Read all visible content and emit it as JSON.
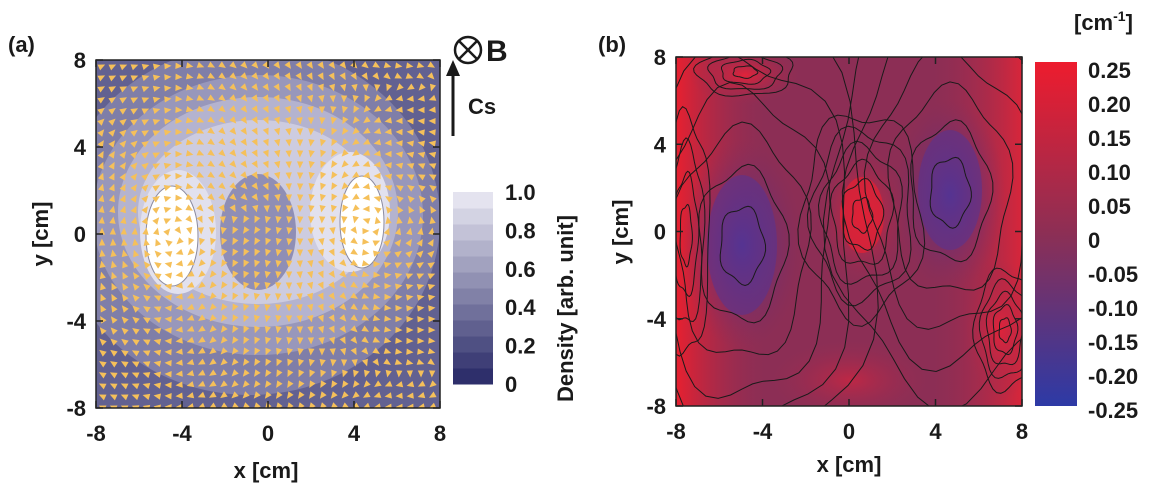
{
  "panels": {
    "a": {
      "label": "(a)",
      "field_symbol": "⊗",
      "field_label": "B",
      "arrow_label": "Cs",
      "colorbar_label": "Density [arb. unit]",
      "colorbar_ticks": [
        "0",
        "0.2",
        "0.4",
        "0.6",
        "0.8",
        "1.0"
      ],
      "colors": {
        "density_low": "#2e2f6b",
        "density_high": "#ffffff",
        "vector": "#f5c05a"
      }
    },
    "b": {
      "label": "(b)",
      "colorbar_unit": "[cm",
      "colorbar_unit_exp": "-1",
      "colorbar_unit_close": "]",
      "colorbar_ticks": [
        "0.25",
        "0.20",
        "0.15",
        "0.10",
        "0.05",
        "0",
        "-0.05",
        "-0.10",
        "-0.15",
        "-0.20",
        "-0.25"
      ],
      "colors": {
        "low": "#2d3aa6",
        "mid": "#8c2f55",
        "high": "#ed1c2e"
      }
    }
  },
  "chart_data": [
    {
      "type": "heatmap",
      "panel": "(a)",
      "xlabel": "x [cm]",
      "ylabel": "y [cm]",
      "xlim": [
        -8,
        8
      ],
      "ylim": [
        -8,
        8
      ],
      "xticks": [
        "-8",
        "-4",
        "0",
        "4",
        "8"
      ],
      "yticks": [
        "8",
        "4",
        "0",
        "-4",
        "-8"
      ],
      "colorbar_range": [
        0,
        1.0
      ],
      "overlay": "velocity vector field",
      "features": [
        {
          "feature": "density peak",
          "x": -4,
          "y": 0,
          "value": 1.0
        },
        {
          "feature": "density peak",
          "x": 4.5,
          "y": 1,
          "value": 1.0
        },
        {
          "feature": "density ring",
          "x": 0,
          "y": 1,
          "value": 0.8
        }
      ]
    },
    {
      "type": "heatmap",
      "panel": "(b)",
      "xlabel": "x [cm]",
      "ylabel": "y [cm]",
      "xlim": [
        -8,
        8
      ],
      "ylim": [
        -8,
        8
      ],
      "xticks": [
        "-8",
        "-4",
        "0",
        "4",
        "8"
      ],
      "yticks": [
        "8",
        "4",
        "0",
        "-4",
        "-8"
      ],
      "colorbar_range": [
        -0.25,
        0.25
      ],
      "overlay": "contour lines",
      "features": [
        {
          "feature": "minimum",
          "x": -5,
          "y": 0,
          "value": -0.15
        },
        {
          "feature": "minimum",
          "x": 5,
          "y": 2,
          "value": -0.15
        },
        {
          "feature": "maximum",
          "x": 0.5,
          "y": 1,
          "value": 0.15
        },
        {
          "feature": "edge maximum",
          "x": -8,
          "y": 0,
          "value": 0.2
        },
        {
          "feature": "edge maximum",
          "x": 8,
          "y": 0,
          "value": 0.15
        },
        {
          "feature": "corner maximum",
          "x": -5,
          "y": 7,
          "value": 0.15
        },
        {
          "feature": "corner maximum",
          "x": 7,
          "y": -5,
          "value": 0.15
        }
      ]
    }
  ]
}
